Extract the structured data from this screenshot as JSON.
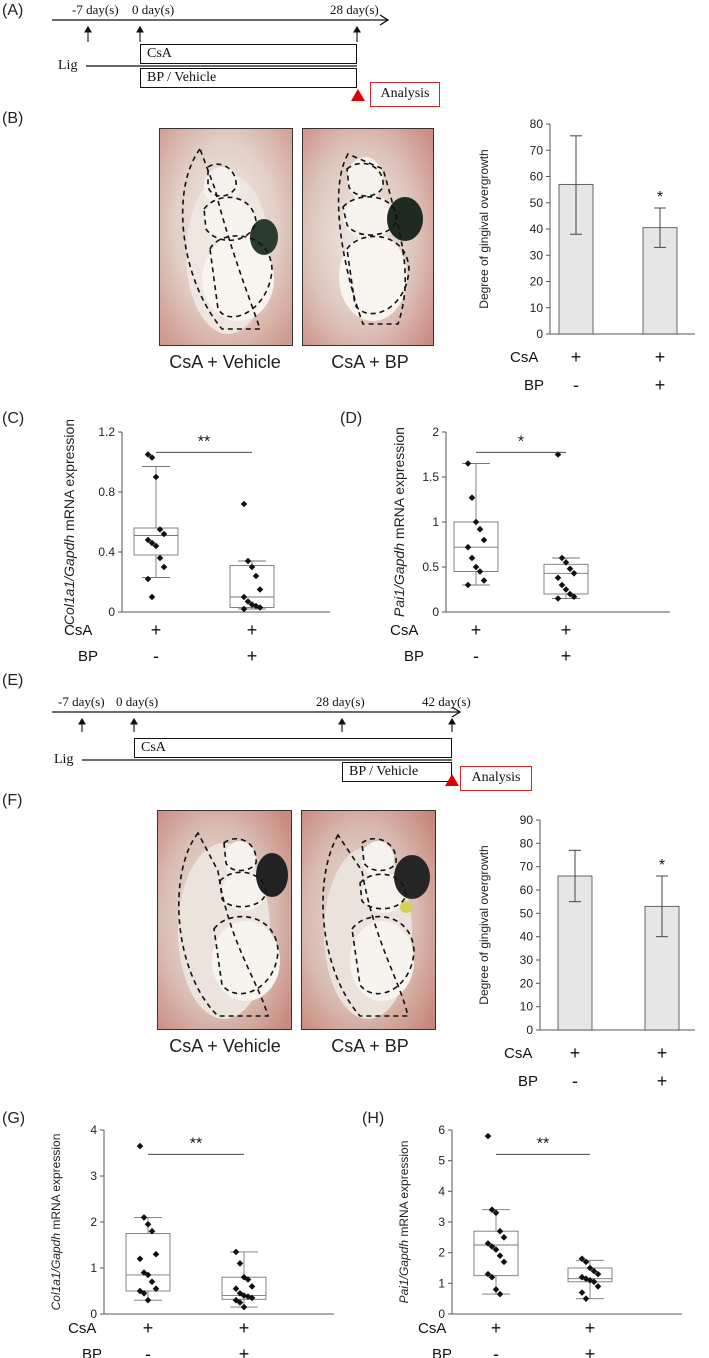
{
  "panels": {
    "A": "(A)",
    "B": "(B)",
    "C": "(C)",
    "D": "(D)",
    "E": "(E)",
    "F": "(F)",
    "G": "(G)",
    "H": "(H)"
  },
  "timeline_a": {
    "ticks": [
      "-7 day(s)",
      "0 day(s)",
      "28 day(s)"
    ],
    "lig": "Lig",
    "csa": "CsA",
    "bp_vehicle": "BP / Vehicle",
    "analysis": "Analysis",
    "arrow_color": "#e00000"
  },
  "timeline_e": {
    "ticks": [
      "-7 day(s)",
      "0 day(s)",
      "28 day(s)",
      "42 day(s)"
    ],
    "lig": "Lig",
    "csa": "CsA",
    "bp_vehicle": "BP / Vehicle",
    "analysis": "Analysis",
    "arrow_color": "#e00000"
  },
  "photos_b": [
    "CsA + Vehicle",
    "CsA + BP"
  ],
  "photos_f": [
    "CsA + Vehicle",
    "CsA + BP"
  ],
  "treatment_rows": {
    "csa_label": "CsA",
    "bp_label": "BP",
    "csa_signs": [
      "+",
      "+"
    ],
    "bp_signs": [
      "-",
      "+"
    ]
  },
  "chart_data": [
    {
      "id": "B",
      "type": "bar",
      "categories": [
        "CsA+Vehicle",
        "CsA+BP"
      ],
      "values": [
        57,
        40.5
      ],
      "errors": [
        [
          38,
          75.5
        ],
        [
          33,
          48
        ]
      ],
      "ylabel": "Degree of gingival overgrowth",
      "ylim": [
        0,
        80
      ],
      "yticks": [
        0,
        10,
        20,
        30,
        40,
        50,
        60,
        70,
        80
      ],
      "significance": "*",
      "bar_color": "#e6e6e6"
    },
    {
      "id": "C",
      "type": "box",
      "ylabel_italic": "Col1a1/Gapdh",
      "ylabel_rest": " mRNA expression",
      "ylim": [
        0,
        1.2
      ],
      "yticks": [
        0,
        0.4,
        0.8,
        1.2
      ],
      "ytick_labels": [
        "0",
        "0.4",
        "0.8",
        "1.2"
      ],
      "significance": "**",
      "groups": [
        {
          "whisker": [
            0.23,
            0.97
          ],
          "box": [
            0.38,
            0.56
          ],
          "median": 0.51,
          "points": [
            1.05,
            1.03,
            0.9,
            0.55,
            0.52,
            0.48,
            0.46,
            0.44,
            0.36,
            0.3,
            0.22,
            0.1
          ]
        },
        {
          "whisker": [
            0.02,
            0.34
          ],
          "box": [
            0.03,
            0.31
          ],
          "median": 0.1,
          "points": [
            0.72,
            0.34,
            0.3,
            0.24,
            0.15,
            0.1,
            0.07,
            0.05,
            0.04,
            0.03,
            0.02
          ]
        }
      ]
    },
    {
      "id": "D",
      "type": "box",
      "ylabel_italic": "Pai1/Gapdh",
      "ylabel_rest": " mRNA expression",
      "ylim": [
        0,
        2
      ],
      "yticks": [
        0,
        0.5,
        1,
        1.5,
        2
      ],
      "ytick_labels": [
        "0",
        "0.5",
        "1",
        "1.5",
        "2"
      ],
      "significance": "*",
      "groups": [
        {
          "whisker": [
            0.3,
            1.65
          ],
          "box": [
            0.45,
            1.0
          ],
          "median": 0.72,
          "points": [
            1.65,
            1.27,
            1.0,
            0.92,
            0.8,
            0.72,
            0.6,
            0.5,
            0.45,
            0.35,
            0.3
          ]
        },
        {
          "whisker": [
            0.15,
            0.6
          ],
          "box": [
            0.2,
            0.53
          ],
          "median": 0.43,
          "points": [
            1.75,
            0.6,
            0.55,
            0.48,
            0.43,
            0.38,
            0.3,
            0.25,
            0.2,
            0.17,
            0.15
          ]
        }
      ]
    },
    {
      "id": "F",
      "type": "bar",
      "categories": [
        "CsA+Vehicle",
        "CsA+BP"
      ],
      "values": [
        66,
        53
      ],
      "errors": [
        [
          55,
          77
        ],
        [
          40,
          66
        ]
      ],
      "ylabel": "Degree of gingival overgrowth",
      "ylim": [
        0,
        90
      ],
      "yticks": [
        0,
        10,
        20,
        30,
        40,
        50,
        60,
        70,
        80,
        90
      ],
      "significance": "*",
      "bar_color": "#e6e6e6"
    },
    {
      "id": "G",
      "type": "box",
      "ylabel_italic": "Col1a1/Gapdh",
      "ylabel_rest": " mRNA expression",
      "ylim": [
        0,
        4
      ],
      "yticks": [
        0,
        1,
        2,
        3,
        4
      ],
      "ytick_labels": [
        "0",
        "1",
        "2",
        "3",
        "4"
      ],
      "significance": "**",
      "groups": [
        {
          "whisker": [
            0.3,
            2.1
          ],
          "box": [
            0.5,
            1.75
          ],
          "median": 0.85,
          "points": [
            3.65,
            2.1,
            1.95,
            1.8,
            1.3,
            1.2,
            0.9,
            0.85,
            0.7,
            0.55,
            0.5,
            0.45,
            0.3
          ]
        },
        {
          "whisker": [
            0.15,
            1.35
          ],
          "box": [
            0.32,
            0.8
          ],
          "median": 0.4,
          "points": [
            1.35,
            1.1,
            0.8,
            0.75,
            0.6,
            0.55,
            0.45,
            0.4,
            0.38,
            0.35,
            0.3,
            0.25,
            0.15
          ]
        }
      ]
    },
    {
      "id": "H",
      "type": "box",
      "ylabel_italic": "Pai1/Gapdh",
      "ylabel_rest": " mRNA expression",
      "ylim": [
        0,
        6
      ],
      "yticks": [
        0,
        1,
        2,
        3,
        4,
        5,
        6
      ],
      "ytick_labels": [
        "0",
        "1",
        "2",
        "3",
        "4",
        "5",
        "6"
      ],
      "significance": "**",
      "groups": [
        {
          "whisker": [
            0.65,
            3.4
          ],
          "box": [
            1.25,
            2.7
          ],
          "median": 2.25,
          "points": [
            5.8,
            3.4,
            3.3,
            2.7,
            2.5,
            2.3,
            2.2,
            2.1,
            1.9,
            1.7,
            1.3,
            1.2,
            0.8,
            0.65
          ]
        },
        {
          "whisker": [
            0.5,
            1.75
          ],
          "box": [
            1.05,
            1.5
          ],
          "median": 1.15,
          "points": [
            1.8,
            1.7,
            1.5,
            1.4,
            1.3,
            1.2,
            1.15,
            1.1,
            1.05,
            0.9,
            0.7,
            0.5
          ]
        }
      ]
    }
  ]
}
